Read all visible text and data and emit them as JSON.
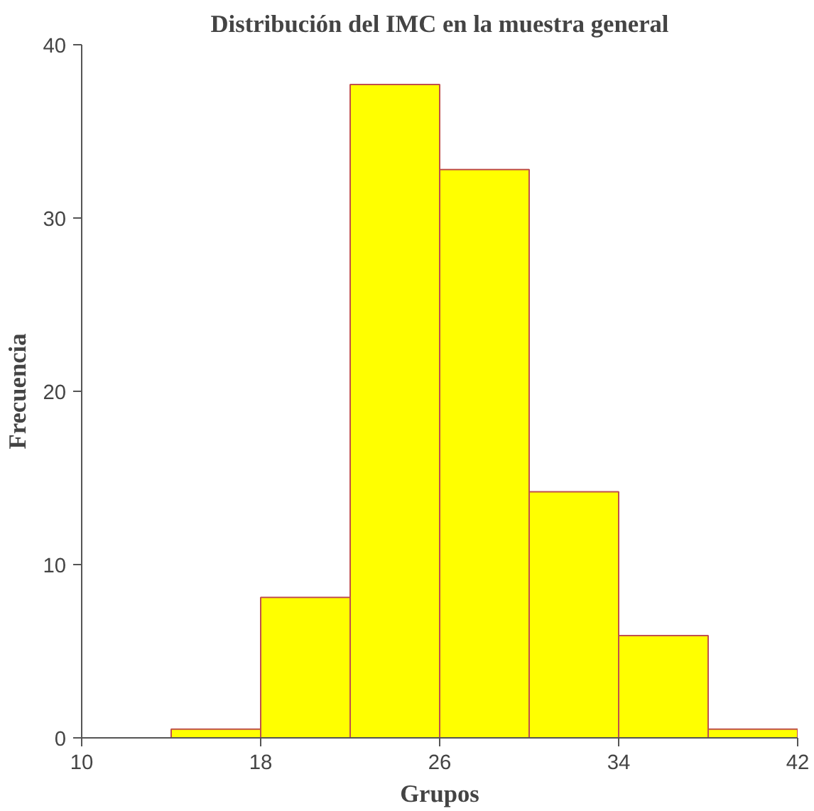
{
  "chart_data": {
    "type": "histogram",
    "title": "Distribución del IMC en la muestra general",
    "xlabel": "Grupos",
    "ylabel": "Frecuencia",
    "bins": [
      14,
      18,
      22,
      26,
      30,
      34,
      38,
      42
    ],
    "values": [
      0.5,
      8.1,
      37.7,
      32.8,
      14.2,
      5.9,
      0.5
    ],
    "color": "#ffff00",
    "xlim": [
      10,
      42
    ],
    "xticks": [
      10,
      18,
      26,
      34,
      42
    ],
    "ylim": [
      0,
      40
    ],
    "yticks": [
      0,
      10,
      20,
      30,
      40
    ],
    "grid": false
  }
}
